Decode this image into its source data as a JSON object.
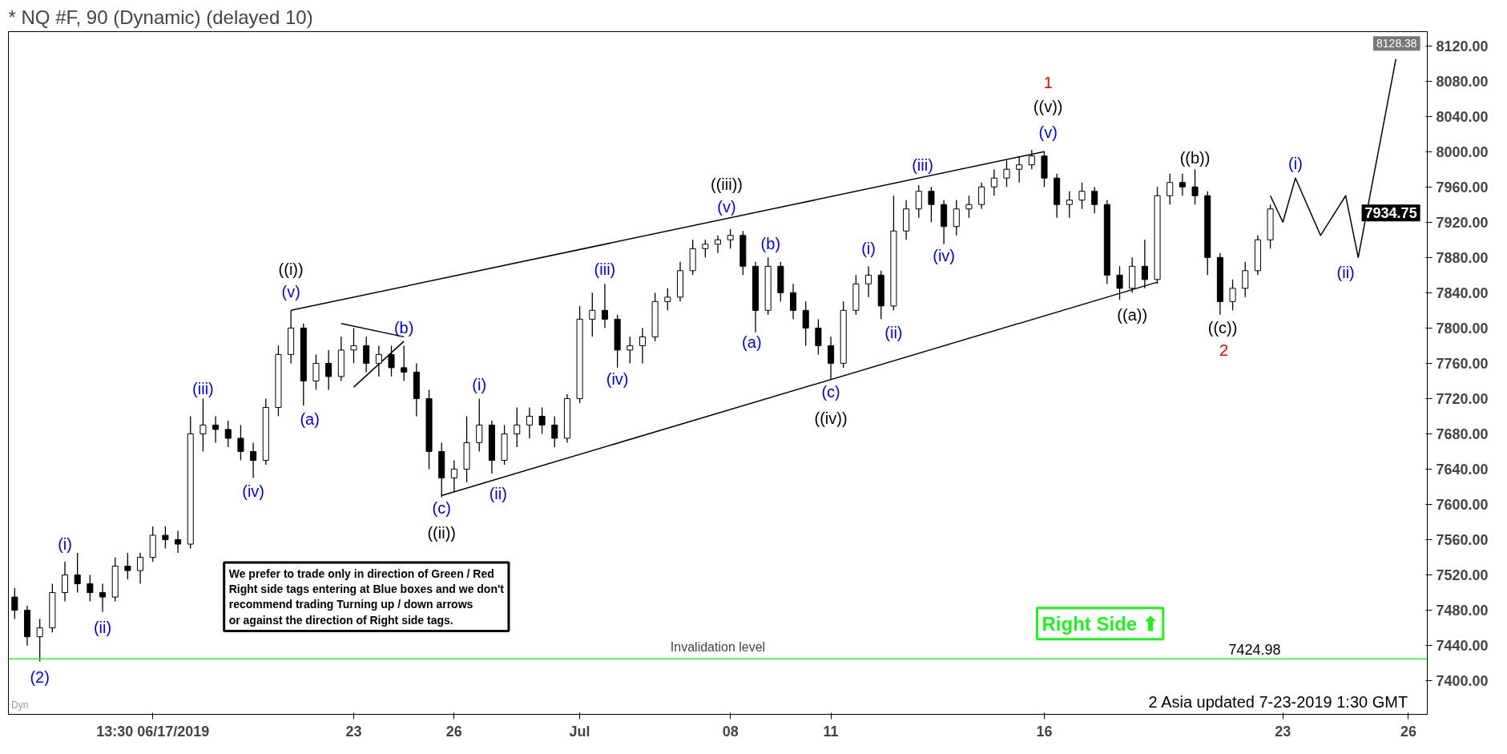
{
  "chart_data": {
    "type": "candlestick",
    "title": "* NQ #F, 90 (Dynamic) (delayed 10)",
    "color": "#000000",
    "categories": [
      null,
      null,
      null,
      null,
      null,
      null,
      null,
      null,
      null,
      null,
      null,
      "13:30 06/17/2019",
      null,
      null,
      null,
      null,
      null,
      null,
      null,
      null,
      null,
      null,
      null,
      null,
      null,
      null,
      null,
      "23",
      null,
      null,
      null,
      null,
      null,
      null,
      null,
      "26",
      null,
      null,
      null,
      null,
      null,
      null,
      null,
      null,
      null,
      "Jul",
      null,
      null,
      null,
      null,
      null,
      null,
      null,
      null,
      null,
      null,
      null,
      "08",
      null,
      null,
      null,
      null,
      null,
      null,
      null,
      "11",
      null,
      null,
      null,
      null,
      null,
      null,
      null,
      null,
      null,
      null,
      null,
      null,
      null,
      null,
      null,
      null,
      "16",
      null,
      null,
      null,
      null,
      null,
      null,
      null,
      null,
      null,
      null,
      null,
      null,
      null,
      null,
      null,
      null,
      null,
      null,
      "23",
      null,
      null,
      null,
      null,
      null,
      null,
      null,
      null,
      null,
      "26",
      null
    ],
    "ohlc": [
      [
        7495,
        7505,
        7470,
        7480
      ],
      [
        7480,
        7485,
        7440,
        7450
      ],
      [
        7450,
        7470,
        7422,
        7460
      ],
      [
        7460,
        7510,
        7455,
        7500
      ],
      [
        7500,
        7535,
        7490,
        7520
      ],
      [
        7520,
        7545,
        7500,
        7510
      ],
      [
        7510,
        7520,
        7490,
        7500
      ],
      [
        7500,
        7510,
        7478,
        7495
      ],
      [
        7495,
        7540,
        7490,
        7530
      ],
      [
        7530,
        7545,
        7515,
        7525
      ],
      [
        7525,
        7545,
        7510,
        7540
      ],
      [
        7540,
        7575,
        7535,
        7565
      ],
      [
        7565,
        7575,
        7550,
        7560
      ],
      [
        7560,
        7570,
        7545,
        7555
      ],
      [
        7555,
        7700,
        7550,
        7680
      ],
      [
        7680,
        7720,
        7660,
        7690
      ],
      [
        7690,
        7700,
        7670,
        7685
      ],
      [
        7685,
        7695,
        7665,
        7675
      ],
      [
        7675,
        7690,
        7650,
        7660
      ],
      [
        7660,
        7670,
        7630,
        7650
      ],
      [
        7650,
        7720,
        7645,
        7710
      ],
      [
        7710,
        7780,
        7700,
        7770
      ],
      [
        7770,
        7820,
        7760,
        7800
      ],
      [
        7800,
        7805,
        7712,
        7740
      ],
      [
        7740,
        7770,
        7730,
        7760
      ],
      [
        7760,
        7775,
        7730,
        7745
      ],
      [
        7745,
        7790,
        7740,
        7775
      ],
      [
        7775,
        7800,
        7760,
        7780
      ],
      [
        7780,
        7790,
        7750,
        7760
      ],
      [
        7760,
        7780,
        7745,
        7770
      ],
      [
        7770,
        7780,
        7745,
        7755
      ],
      [
        7755,
        7780,
        7740,
        7750
      ],
      [
        7750,
        7760,
        7700,
        7720
      ],
      [
        7720,
        7730,
        7640,
        7660
      ],
      [
        7660,
        7670,
        7608,
        7630
      ],
      [
        7630,
        7650,
        7615,
        7640
      ],
      [
        7640,
        7700,
        7625,
        7670
      ],
      [
        7670,
        7720,
        7660,
        7690
      ],
      [
        7690,
        7695,
        7635,
        7650
      ],
      [
        7650,
        7690,
        7645,
        7680
      ],
      [
        7680,
        7710,
        7665,
        7690
      ],
      [
        7690,
        7710,
        7675,
        7700
      ],
      [
        7700,
        7710,
        7680,
        7690
      ],
      [
        7690,
        7700,
        7665,
        7675
      ],
      [
        7675,
        7725,
        7670,
        7720
      ],
      [
        7720,
        7825,
        7715,
        7810
      ],
      [
        7810,
        7840,
        7790,
        7820
      ],
      [
        7820,
        7850,
        7800,
        7810
      ],
      [
        7810,
        7815,
        7755,
        7775
      ],
      [
        7775,
        7790,
        7760,
        7780
      ],
      [
        7780,
        7800,
        7760,
        7790
      ],
      [
        7790,
        7840,
        7785,
        7830
      ],
      [
        7830,
        7845,
        7820,
        7835
      ],
      [
        7835,
        7875,
        7830,
        7865
      ],
      [
        7865,
        7900,
        7860,
        7890
      ],
      [
        7890,
        7900,
        7880,
        7895
      ],
      [
        7895,
        7905,
        7885,
        7900
      ],
      [
        7900,
        7912,
        7890,
        7905
      ],
      [
        7905,
        7910,
        7860,
        7870
      ],
      [
        7870,
        7875,
        7795,
        7820
      ],
      [
        7820,
        7880,
        7815,
        7870
      ],
      [
        7870,
        7875,
        7830,
        7840
      ],
      [
        7840,
        7850,
        7810,
        7820
      ],
      [
        7820,
        7830,
        7780,
        7800
      ],
      [
        7800,
        7810,
        7770,
        7780
      ],
      [
        7780,
        7790,
        7742,
        7760
      ],
      [
        7760,
        7830,
        7755,
        7820
      ],
      [
        7820,
        7860,
        7815,
        7850
      ],
      [
        7850,
        7870,
        7835,
        7860
      ],
      [
        7860,
        7865,
        7810,
        7825
      ],
      [
        7825,
        7950,
        7820,
        7910
      ],
      [
        7910,
        7945,
        7900,
        7935
      ],
      [
        7935,
        7962,
        7925,
        7955
      ],
      [
        7955,
        7960,
        7920,
        7940
      ],
      [
        7940,
        7945,
        7895,
        7915
      ],
      [
        7915,
        7945,
        7905,
        7935
      ],
      [
        7935,
        7950,
        7925,
        7940
      ],
      [
        7940,
        7965,
        7935,
        7960
      ],
      [
        7960,
        7980,
        7950,
        7970
      ],
      [
        7970,
        7990,
        7960,
        7980
      ],
      [
        7980,
        7995,
        7965,
        7985
      ],
      [
        7985,
        8002,
        7980,
        7995
      ],
      [
        7995,
        8000,
        7960,
        7970
      ],
      [
        7970,
        7975,
        7925,
        7940
      ],
      [
        7940,
        7955,
        7925,
        7945
      ],
      [
        7945,
        7965,
        7935,
        7955
      ],
      [
        7955,
        7960,
        7930,
        7940
      ],
      [
        7940,
        7945,
        7850,
        7860
      ],
      [
        7860,
        7870,
        7832,
        7845
      ],
      [
        7845,
        7880,
        7840,
        7870
      ],
      [
        7870,
        7900,
        7845,
        7855
      ],
      [
        7855,
        7960,
        7850,
        7950
      ],
      [
        7950,
        7975,
        7940,
        7965
      ],
      [
        7965,
        7975,
        7950,
        7960
      ],
      [
        7960,
        7980,
        7940,
        7950
      ],
      [
        7950,
        7955,
        7860,
        7880
      ],
      [
        7880,
        7885,
        7815,
        7830
      ],
      [
        7830,
        7855,
        7820,
        7845
      ],
      [
        7845,
        7875,
        7835,
        7865
      ],
      [
        7865,
        7905,
        7860,
        7900
      ],
      [
        7900,
        7940,
        7890,
        7935
      ],
      null,
      null,
      null,
      null,
      null,
      null,
      null,
      null,
      null,
      null,
      null,
      null
    ],
    "series": [
      {
        "type": "line",
        "color": "#000000",
        "values": [
          null,
          null,
          null,
          null,
          null,
          null,
          null,
          null,
          null,
          null,
          null,
          null,
          null,
          null,
          null,
          null,
          null,
          null,
          null,
          null,
          null,
          null,
          7820,
          null,
          null,
          null,
          null,
          null,
          null,
          null,
          null,
          null,
          null,
          null,
          null,
          null,
          null,
          null,
          null,
          null,
          null,
          null,
          null,
          null,
          null,
          null,
          null,
          null,
          null,
          null,
          null,
          null,
          null,
          null,
          null,
          null,
          null,
          null,
          null,
          null,
          null,
          null,
          null,
          null,
          null,
          null,
          null,
          null,
          null,
          null,
          null,
          null,
          null,
          null,
          null,
          null,
          null,
          null,
          null,
          null,
          null,
          null,
          8000,
          null,
          null,
          null,
          null,
          null,
          null,
          null,
          null,
          null,
          null,
          null,
          null,
          null,
          null,
          null,
          null,
          null,
          null,
          null,
          null,
          null,
          null,
          null,
          null,
          null,
          null,
          null,
          null,
          null,
          null
        ]
      },
      {
        "type": "line",
        "color": "#000000",
        "values": [
          null,
          null,
          null,
          null,
          null,
          null,
          null,
          null,
          null,
          null,
          null,
          null,
          null,
          null,
          null,
          null,
          null,
          null,
          null,
          null,
          null,
          null,
          null,
          null,
          null,
          null,
          null,
          null,
          null,
          null,
          null,
          null,
          null,
          null,
          7610,
          null,
          null,
          null,
          null,
          null,
          null,
          null,
          null,
          null,
          null,
          null,
          null,
          null,
          null,
          null,
          null,
          null,
          null,
          null,
          null,
          null,
          null,
          null,
          null,
          null,
          null,
          null,
          null,
          null,
          null,
          null,
          null,
          null,
          null,
          null,
          null,
          null,
          null,
          null,
          null,
          null,
          null,
          null,
          null,
          null,
          null,
          null,
          null,
          null,
          null,
          null,
          null,
          null,
          null,
          null,
          null,
          7852,
          null,
          null,
          null,
          null,
          null,
          null,
          null,
          null,
          null,
          null,
          null,
          null,
          null,
          null,
          null,
          null,
          null,
          null,
          null,
          null,
          null
        ]
      },
      {
        "type": "line",
        "color": "#000000",
        "values": [
          null,
          null,
          null,
          null,
          null,
          null,
          null,
          null,
          null,
          null,
          null,
          null,
          null,
          null,
          null,
          null,
          null,
          null,
          null,
          null,
          null,
          null,
          null,
          null,
          null,
          null,
          7805,
          null,
          null,
          null,
          null,
          7790,
          null,
          null,
          null,
          null,
          null,
          null,
          null,
          null,
          null,
          null,
          null,
          null,
          null,
          null,
          null,
          null,
          null,
          null,
          null,
          null,
          null,
          null,
          null,
          null,
          null,
          null,
          null,
          null,
          null,
          null,
          null,
          null,
          null,
          null,
          null,
          null,
          null,
          null,
          null,
          null,
          null,
          null,
          null,
          null,
          null,
          null,
          null,
          null,
          null,
          null,
          null,
          null,
          null,
          null,
          null,
          null,
          null,
          null,
          null,
          null,
          null,
          null,
          null,
          null,
          null,
          null,
          null,
          null,
          null,
          null,
          null,
          null,
          null,
          null,
          null,
          null,
          null,
          null,
          null,
          null,
          null
        ]
      },
      {
        "type": "line",
        "color": "#000000",
        "values": [
          null,
          null,
          null,
          null,
          null,
          null,
          null,
          null,
          null,
          null,
          null,
          null,
          null,
          null,
          null,
          null,
          null,
          null,
          null,
          null,
          null,
          null,
          null,
          null,
          null,
          null,
          null,
          7733,
          null,
          null,
          null,
          7785,
          null,
          null,
          null,
          null,
          null,
          null,
          null,
          null,
          null,
          null,
          null,
          null,
          null,
          null,
          null,
          null,
          null,
          null,
          null,
          null,
          null,
          null,
          null,
          null,
          null,
          null,
          null,
          null,
          null,
          null,
          null,
          null,
          null,
          null,
          null,
          null,
          null,
          null,
          null,
          null,
          null,
          null,
          null,
          null,
          null,
          null,
          null,
          null,
          null,
          null,
          null,
          null,
          null,
          null,
          null,
          null,
          null,
          null,
          null,
          null,
          null,
          null,
          null,
          null,
          null,
          null,
          null,
          null,
          null,
          null,
          null,
          null,
          null,
          null,
          null,
          null,
          null,
          null,
          null,
          null,
          null
        ]
      },
      {
        "type": "line",
        "color": "#000000",
        "values": [
          null,
          null,
          null,
          null,
          null,
          null,
          null,
          null,
          null,
          null,
          null,
          null,
          null,
          null,
          null,
          null,
          null,
          null,
          null,
          null,
          null,
          null,
          null,
          null,
          null,
          null,
          null,
          null,
          null,
          null,
          null,
          null,
          null,
          null,
          null,
          null,
          null,
          null,
          null,
          null,
          null,
          null,
          null,
          null,
          null,
          null,
          null,
          null,
          null,
          null,
          null,
          null,
          null,
          null,
          null,
          null,
          null,
          null,
          null,
          null,
          null,
          null,
          null,
          null,
          null,
          null,
          null,
          null,
          null,
          null,
          null,
          null,
          null,
          null,
          null,
          null,
          null,
          null,
          null,
          null,
          null,
          null,
          null,
          null,
          null,
          null,
          null,
          null,
          null,
          null,
          null,
          null,
          null,
          null,
          null,
          null,
          null,
          null,
          null,
          null,
          7950,
          7920,
          7970,
          null,
          7905,
          null,
          7950,
          7880,
          null,
          null,
          8105,
          null,
          null
        ]
      }
    ],
    "ylim": [
      7362,
      8136
    ],
    "yticks": [
      {
        "value": 7400,
        "label": "7400.00"
      },
      {
        "value": 7440,
        "label": "7440.00"
      },
      {
        "value": 7480,
        "label": "7480.00"
      },
      {
        "value": 7520,
        "label": "7520.00"
      },
      {
        "value": 7560,
        "label": "7560.00"
      },
      {
        "value": 7600,
        "label": "7600.00"
      },
      {
        "value": 7640,
        "label": "7640.00"
      },
      {
        "value": 7680,
        "label": "7680.00"
      },
      {
        "value": 7720,
        "label": "7720.00"
      },
      {
        "value": 7760,
        "label": "7760.00"
      },
      {
        "value": 7800,
        "label": "7800.00"
      },
      {
        "value": 7840,
        "label": "7840.00"
      },
      {
        "value": 7880,
        "label": "7880.00"
      },
      {
        "value": 7920,
        "label": "7920.00"
      },
      {
        "value": 7960,
        "label": "7960.00"
      },
      {
        "value": 8000,
        "label": "8000.00"
      },
      {
        "value": 8040,
        "label": "8040.00"
      },
      {
        "value": 8080,
        "label": "8080.00"
      },
      {
        "value": 8120,
        "label": "8120.00"
      }
    ],
    "ref_lines": [
      {
        "axis": "y",
        "value": 7424.98,
        "label": "Invalidation level",
        "color": "#33ee33"
      }
    ],
    "annotations": [
      "(2)",
      "(i)",
      "(ii)",
      "(iii)",
      "(iv)",
      "(v)",
      "((i))",
      "(a)",
      "(b)",
      "(c)",
      "((ii))",
      "(i)",
      "(ii)",
      "(iii)",
      "(iv)",
      "(v)",
      "((iii))",
      "(a)",
      "(b)",
      "(c)",
      "((iv))",
      "(i)",
      "(ii)",
      "(iii)",
      "(iv)",
      "(v)",
      "((v))",
      "1",
      "((a))",
      "((b))",
      "((c))",
      "2",
      "(i)",
      "(ii)",
      "7424.98",
      "7934.75",
      "8128.38",
      "We prefer to trade only in direction of Green / Red\nRight side tags entering at Blue boxes and we don't\nrecommend trading Turning up / down arrows\nor against the direction of Right side tags.",
      "Right Side ⬆",
      "Dyn",
      "2 Asia  updated 7-23-2019 1:30 GMT"
    ]
  }
}
